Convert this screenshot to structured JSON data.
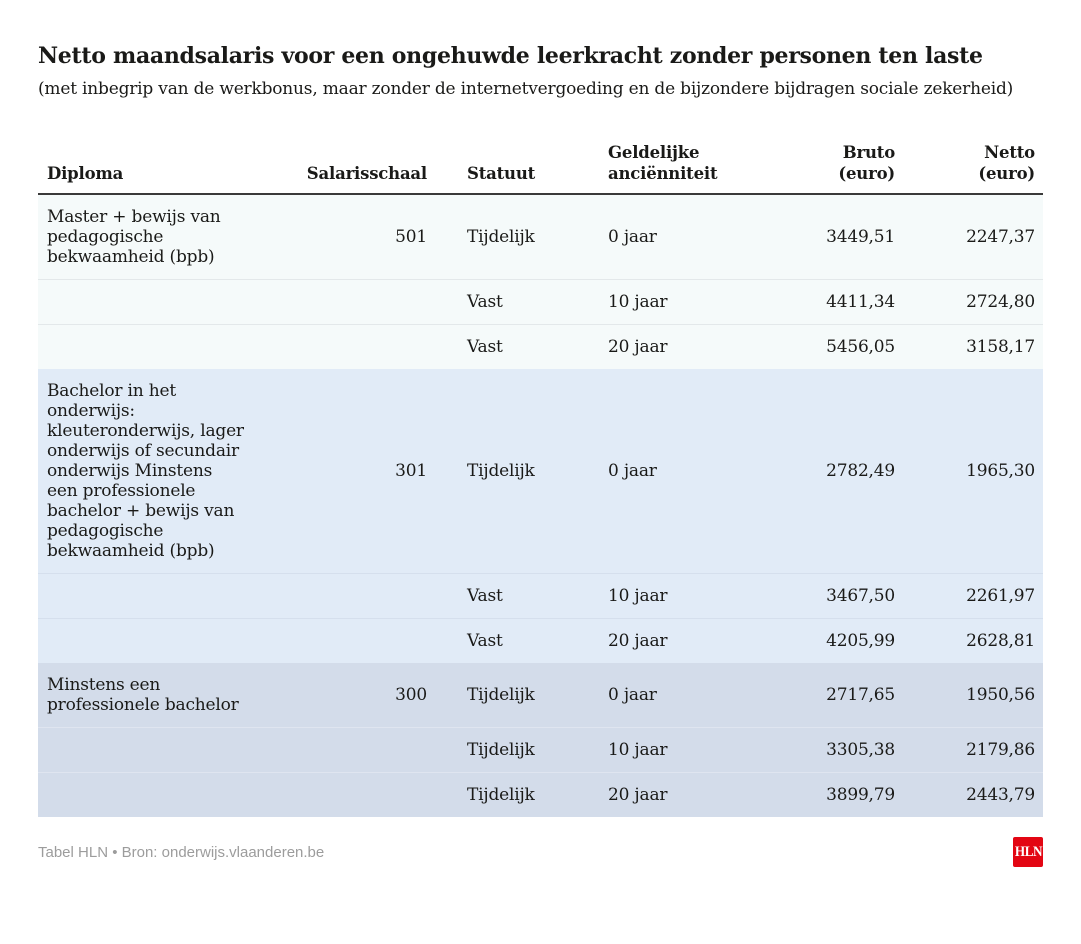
{
  "page": {
    "title": "Netto maandsalaris voor een ongehuwde leerkracht zonder personen ten laste",
    "subtitle": "(met inbegrip van de werkbonus, maar zonder de internetvergoeding en de bijzondere bijdragen sociale zekerheid)"
  },
  "table": {
    "columns": [
      {
        "key": "diploma",
        "label": "Diploma",
        "align": "left"
      },
      {
        "key": "salarisschaal",
        "label": "Salarisschaal",
        "align": "right"
      },
      {
        "key": "statuut",
        "label": "Statuut",
        "align": "left"
      },
      {
        "key": "ancienniteit",
        "label": "Geldelijke\nanciënniteit",
        "align": "left"
      },
      {
        "key": "bruto",
        "label": "Bruto\n(euro)",
        "align": "right"
      },
      {
        "key": "netto",
        "label": "Netto\n(euro)",
        "align": "right"
      }
    ],
    "groups": [
      {
        "bg": "#f5fafa",
        "divider": "#e3e8ea",
        "rows": [
          [
            "Master + bewijs van\npedagogische\nbekwaamheid (bpb)",
            "501",
            "Tijdelijk",
            "0 jaar",
            "3449,51",
            "2247,37"
          ],
          [
            "",
            "",
            "Vast",
            "10 jaar",
            "4411,34",
            "2724,80"
          ],
          [
            "",
            "",
            "Vast",
            "20 jaar",
            "5456,05",
            "3158,17"
          ]
        ]
      },
      {
        "bg": "#e1ebf7",
        "divider": "#d5dfed",
        "rows": [
          [
            "Bachelor in het\nonderwijs:\nkleuteronderwijs, lager\nonderwijs of secundair\nonderwijs Minstens\neen professionele\nbachelor + bewijs van\npedagogische\nbekwaamheid (bpb)",
            "301",
            "Tijdelijk",
            "0 jaar",
            "2782,49",
            "1965,30"
          ],
          [
            "",
            "",
            "Vast",
            "10 jaar",
            "3467,50",
            "2261,97"
          ],
          [
            "",
            "",
            "Vast",
            "20 jaar",
            "4205,99",
            "2628,81"
          ]
        ]
      },
      {
        "bg": "#d3dcea",
        "divider": "#dfe5f0",
        "rows": [
          [
            "Minstens een\nprofessionele bachelor",
            "300",
            "Tijdelijk",
            "0 jaar",
            "2717,65",
            "1950,56"
          ],
          [
            "",
            "",
            "Tijdelijk",
            "10 jaar",
            "3305,38",
            "2179,86"
          ],
          [
            "",
            "",
            "Tijdelijk",
            "20 jaar",
            "3899,79",
            "2443,79"
          ]
        ]
      }
    ]
  },
  "footer": {
    "credit": "Tabel HLN • Bron: onderwijs.vlaanderen.be",
    "logo_text": "HLN"
  },
  "colors": {
    "header_rule": "#3a3a3a",
    "text": "#1a1a18",
    "footer_text": "#9c9c9c",
    "brand_red": "#e30613",
    "page_background": "#ffffff"
  },
  "chart_data": {
    "type": "table",
    "title": "Netto maandsalaris voor een ongehuwde leerkracht zonder personen ten laste",
    "subtitle": "(met inbegrip van de werkbonus, maar zonder de internetvergoeding en de bijzondere bijdragen sociale zekerheid)",
    "columns": [
      "Diploma",
      "Salarisschaal",
      "Statuut",
      "Geldelijke anciënniteit",
      "Bruto (euro)",
      "Netto (euro)"
    ],
    "rows": [
      [
        "Master + bewijs van pedagogische bekwaamheid (bpb)",
        "501",
        "Tijdelijk",
        "0 jaar",
        "3449,51",
        "2247,37"
      ],
      [
        "",
        "",
        "Vast",
        "10 jaar",
        "4411,34",
        "2724,80"
      ],
      [
        "",
        "",
        "Vast",
        "20 jaar",
        "5456,05",
        "3158,17"
      ],
      [
        "Bachelor in het onderwijs: kleuteronderwijs, lager onderwijs of secundair onderwijs Minstens een professionele bachelor + bewijs van pedagogische bekwaamheid (bpb)",
        "301",
        "Tijdelijk",
        "0 jaar",
        "2782,49",
        "1965,30"
      ],
      [
        "",
        "",
        "Vast",
        "10 jaar",
        "3467,50",
        "2261,97"
      ],
      [
        "",
        "",
        "Vast",
        "20 jaar",
        "4205,99",
        "2628,81"
      ],
      [
        "Minstens een professionele bachelor",
        "300",
        "Tijdelijk",
        "0 jaar",
        "2717,65",
        "1950,56"
      ],
      [
        "",
        "",
        "Tijdelijk",
        "10 jaar",
        "3305,38",
        "2179,86"
      ],
      [
        "",
        "",
        "Tijdelijk",
        "20 jaar",
        "3899,79",
        "2443,79"
      ]
    ],
    "source": "Tabel HLN • Bron: onderwijs.vlaanderen.be"
  }
}
